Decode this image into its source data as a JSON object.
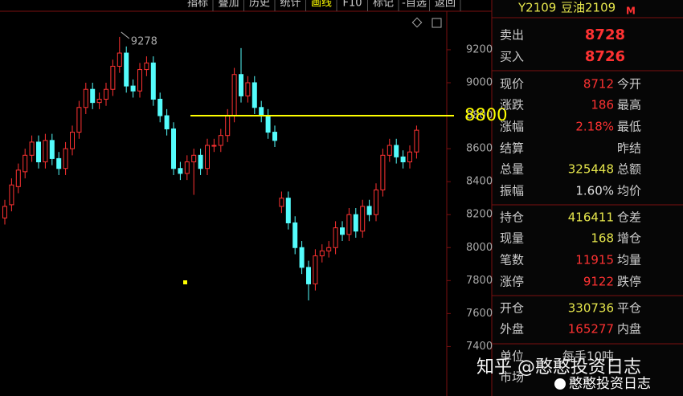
{
  "toolbar": [
    "指标",
    "叠加",
    "历史",
    "统计",
    "画线",
    "F10",
    "标记",
    "-自选",
    "返回"
  ],
  "chart_data": {
    "type": "candlestick",
    "open": [
      8180,
      8260,
      8370,
      8460,
      8560,
      8640,
      8520,
      8650,
      8540,
      8480,
      8600,
      8700,
      8850,
      8960,
      8880,
      8900,
      8960,
      9100,
      9180,
      8980,
      8950,
      9080,
      9120,
      8900,
      8800,
      8720,
      8480,
      8450,
      8520,
      8560,
      8480,
      8620,
      8620,
      8680,
      8800,
      9050,
      8920,
      9000,
      8850,
      8800,
      8700,
      8250,
      8300,
      8150,
      8000,
      7880,
      7780,
      7950,
      7980,
      8000,
      8120,
      8080,
      8200,
      8100,
      8250,
      8200,
      8350,
      8560,
      8620,
      8550,
      8520,
      8580
    ],
    "high": [
      8290,
      8420,
      8510,
      8600,
      8680,
      8680,
      8690,
      8690,
      8580,
      8640,
      8740,
      8890,
      9000,
      9000,
      8940,
      9000,
      9140,
      9278,
      9220,
      9020,
      9120,
      9160,
      9160,
      8940,
      8840,
      8760,
      8520,
      8560,
      8600,
      8600,
      8660,
      8660,
      8720,
      8840,
      9090,
      9210,
      9040,
      9040,
      8890,
      8840,
      8740,
      8340,
      8340,
      8190,
      8040,
      7920,
      7990,
      8020,
      8040,
      8160,
      8160,
      8240,
      8240,
      8290,
      8290,
      8390,
      8600,
      8660,
      8660,
      8590,
      8620,
      8740
    ],
    "low": [
      8140,
      8220,
      8330,
      8420,
      8520,
      8480,
      8480,
      8500,
      8440,
      8440,
      8560,
      8660,
      8810,
      8840,
      8840,
      8860,
      8920,
      9060,
      8940,
      8910,
      8910,
      9040,
      8860,
      8760,
      8680,
      8440,
      8410,
      8410,
      8320,
      8440,
      8440,
      8580,
      8580,
      8640,
      8760,
      8880,
      8880,
      8810,
      8760,
      8660,
      8610,
      8210,
      8110,
      7960,
      7840,
      7680,
      7740,
      7910,
      7940,
      7960,
      8040,
      8040,
      8060,
      8060,
      8160,
      8160,
      8310,
      8520,
      8510,
      8480,
      8480,
      8540
    ],
    "close": [
      8250,
      8380,
      8470,
      8560,
      8640,
      8520,
      8650,
      8540,
      8480,
      8600,
      8700,
      8850,
      8960,
      8880,
      8900,
      8960,
      9100,
      9180,
      8980,
      8950,
      9080,
      9120,
      8900,
      8800,
      8720,
      8480,
      8450,
      8520,
      8560,
      8480,
      8620,
      8620,
      8680,
      8800,
      9050,
      8920,
      9000,
      8850,
      8800,
      8700,
      8650,
      8300,
      8150,
      8000,
      7880,
      7780,
      7950,
      7980,
      8000,
      8120,
      8080,
      8200,
      8100,
      8250,
      8200,
      8350,
      8560,
      8620,
      8550,
      8520,
      8580,
      8712
    ],
    "up_color": "#ff3232",
    "down_color": "#54fcfc",
    "ylim": [
      7100,
      9380
    ],
    "yticks": [
      7400,
      7600,
      7800,
      8000,
      8200,
      8400,
      8600,
      8800,
      9000,
      9200
    ],
    "annotations": [
      {
        "text": "9278",
        "x": 17,
        "y": 9278
      }
    ],
    "hline": {
      "value": 8800,
      "label": "8800",
      "color": "#ffff00"
    }
  },
  "quote_panel": {
    "symbol": "Y2109",
    "name": "豆油2109",
    "flag": "M",
    "rows": [
      {
        "label": "卖出",
        "value": "8728",
        "color": "#ff3232"
      },
      {
        "label": "买入",
        "value": "8726",
        "color": "#ff3232"
      },
      {
        "label": "现价",
        "value": "8712",
        "label2": "今开",
        "color": "#ff3232"
      },
      {
        "label": "涨跌",
        "value": "186",
        "label2": "最高",
        "color": "#ff3232"
      },
      {
        "label": "涨幅",
        "value": "2.18%",
        "label2": "最低",
        "color": "#ff3232"
      },
      {
        "label": "结算",
        "label2": "昨结"
      },
      {
        "label": "总量",
        "value": "325448",
        "label2": "总额",
        "color": "#e6e64c"
      },
      {
        "label": "振幅",
        "value": "1.60%",
        "label2": "均价",
        "color": "#e0e0e0"
      },
      {
        "label": "持仓",
        "value": "416411",
        "label2": "仓差",
        "color": "#e6e64c"
      },
      {
        "label": "现量",
        "value": "168",
        "label2": "增仓",
        "color": "#e6e64c"
      },
      {
        "label": "笔数",
        "value": "11915",
        "label2": "均量",
        "color": "#ff3232"
      },
      {
        "label": "涨停",
        "value": "9122",
        "label2": "跌停",
        "color": "#ff3232"
      },
      {
        "label": "开仓",
        "value": "330736",
        "label2": "平仓",
        "color": "#e6e64c"
      },
      {
        "label": "外盘",
        "value": "165277",
        "label2": "内盘",
        "color": "#ff3232"
      },
      {
        "label": "单位",
        "value": "每手10吨",
        "color": "#c8c8c8"
      },
      {
        "label": "市场"
      }
    ]
  },
  "watermark": [
    "知乎 @憨憨投资日志",
    "憨憨投资日志"
  ]
}
